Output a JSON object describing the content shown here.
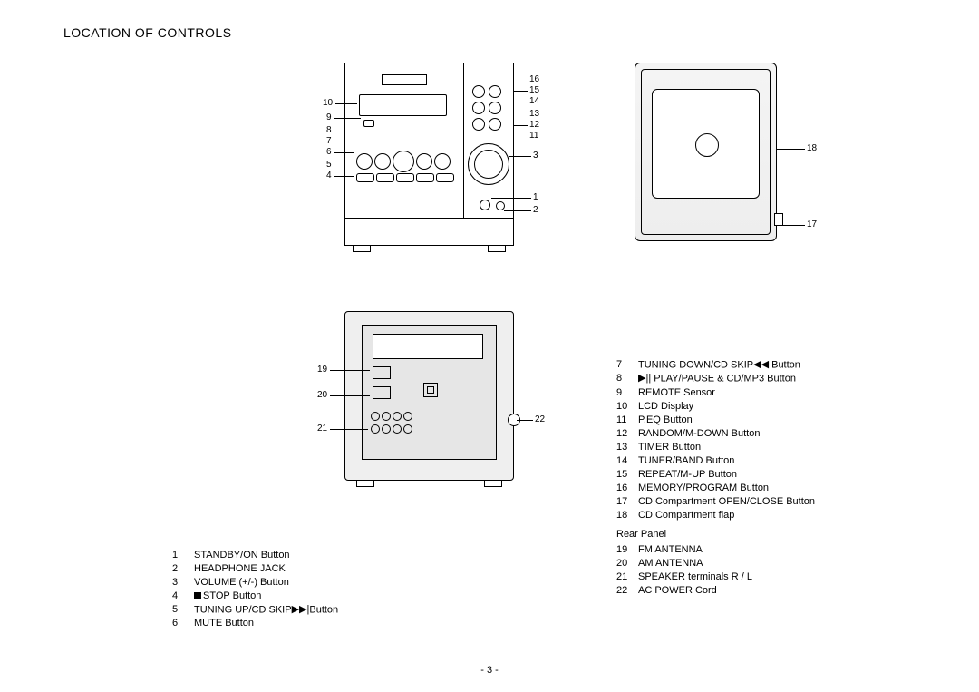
{
  "heading": "LOCATION OF CONTROLS",
  "page_number": "- 3 -",
  "colors": {
    "line": "#000000",
    "bg": "#ffffff",
    "shade": "#eeeeee"
  },
  "front_callouts_left": [
    "10",
    "9",
    "8",
    "7",
    "6",
    "5",
    "4"
  ],
  "front_callouts_right_top": [
    "16",
    "15",
    "14"
  ],
  "front_callouts_right_mid": [
    "13",
    "12",
    "11"
  ],
  "front_callout_3": "3",
  "front_callouts_bottom_right": [
    "1",
    "2"
  ],
  "top_callout_18": "18",
  "top_callout_17": "17",
  "rear_callouts_left": [
    "19",
    "20",
    "21"
  ],
  "rear_callout_22": "22",
  "legend_left": [
    {
      "n": "1",
      "t": "STANDBY/ON Button"
    },
    {
      "n": "2",
      "t": "HEADPHONE JACK"
    },
    {
      "n": "3",
      "t": "VOLUME (+/-)  Button"
    },
    {
      "n": "4",
      "t": "STOP  Button",
      "pre": "stop"
    },
    {
      "n": "5",
      "t": "TUNING UP/CD SKIP",
      "post": "ffwd",
      "tail": "Button"
    },
    {
      "n": "6",
      "t": "MUTE Button"
    }
  ],
  "legend_right": [
    {
      "n": "7",
      "t": "TUNING DOWN/CD SKIP",
      "post": "rew",
      "tail": " Button"
    },
    {
      "n": "8",
      "pre": "playpause",
      "t": " PLAY/PAUSE & CD/MP3 Button"
    },
    {
      "n": "9",
      "t": "REMOTE Sensor"
    },
    {
      "n": "10",
      "t": "LCD  Display"
    },
    {
      "n": "11",
      "t": "P.EQ Button"
    },
    {
      "n": "12",
      "t": "RANDOM/M-DOWN Button"
    },
    {
      "n": "13",
      "t": "TIMER Button"
    },
    {
      "n": "14",
      "t": "TUNER/BAND Button"
    },
    {
      "n": "15",
      "t": "REPEAT/M-UP Button"
    },
    {
      "n": "16",
      "t": "MEMORY/PROGRAM Button"
    },
    {
      "n": "17",
      "t": "CD Compartment OPEN/CLOSE  Button"
    },
    {
      "n": "18",
      "t": " CD Compartment flap"
    }
  ],
  "rear_panel_label": "Rear Panel",
  "legend_rear": [
    {
      "n": "19",
      "t": "FM ANTENNA"
    },
    {
      "n": "20",
      "t": "AM ANTENNA"
    },
    {
      "n": "21",
      "t": "SPEAKER terminals R / L"
    },
    {
      "n": "22",
      "t": "AC POWER Cord"
    }
  ],
  "symbols": {
    "rew": "◀◀",
    "ffwd": "▶▶|",
    "playpause": "▶||"
  }
}
